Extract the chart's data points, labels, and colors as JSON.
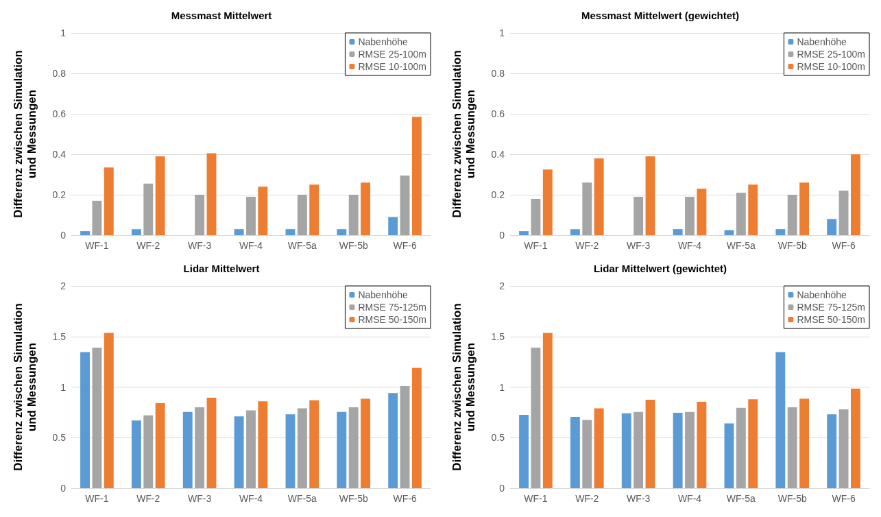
{
  "chart_data": [
    {
      "type": "bar",
      "title": "Messmast Mittelwert",
      "ylabel": "Differenz zwischen Simulation\nund Messungen",
      "categories": [
        "WF-1",
        "WF-2",
        "WF-3",
        "WF-4",
        "WF-5a",
        "WF-5b",
        "WF-6"
      ],
      "series": [
        {
          "name": "Nabenhöhe",
          "color": "#5b9bd5",
          "values": [
            0.02,
            0.03,
            null,
            0.03,
            0.03,
            0.03,
            0.09
          ]
        },
        {
          "name": "RMSE 25-100m",
          "color": "#a5a5a5",
          "values": [
            0.17,
            0.255,
            0.2,
            0.19,
            0.2,
            0.2,
            0.295
          ]
        },
        {
          "name": "RMSE 10-100m",
          "color": "#ed7d31",
          "values": [
            0.335,
            0.39,
            0.405,
            0.24,
            0.25,
            0.26,
            0.585
          ]
        }
      ],
      "ylim": [
        0,
        1
      ],
      "yticks": [
        0,
        0.2,
        0.4,
        0.6,
        0.8,
        1
      ],
      "grid": "y",
      "legend": "top right"
    },
    {
      "type": "bar",
      "title": "Messmast Mittelwert (gewichtet)",
      "ylabel": "Differenz zwischen Simulation\nund Messungen",
      "categories": [
        "WF-1",
        "WF-2",
        "WF-3",
        "WF-4",
        "WF-5a",
        "WF-5b",
        "WF-6"
      ],
      "series": [
        {
          "name": "Nabenhöhe",
          "color": "#5b9bd5",
          "values": [
            0.02,
            0.03,
            null,
            0.03,
            0.025,
            0.03,
            0.08
          ]
        },
        {
          "name": "RMSE 25-100m",
          "color": "#a5a5a5",
          "values": [
            0.18,
            0.26,
            0.19,
            0.19,
            0.21,
            0.2,
            0.22
          ]
        },
        {
          "name": "RMSE 10-100m",
          "color": "#ed7d31",
          "values": [
            0.325,
            0.38,
            0.39,
            0.23,
            0.25,
            0.26,
            0.4
          ]
        }
      ],
      "ylim": [
        0,
        1
      ],
      "yticks": [
        0,
        0.2,
        0.4,
        0.6,
        0.8,
        1
      ],
      "grid": "y",
      "legend": "top right"
    },
    {
      "type": "bar",
      "title": "Lidar Mittelwert",
      "ylabel": "Differenz zwischen Simulation\nund Messungen",
      "categories": [
        "WF-1",
        "WF-2",
        "WF-3",
        "WF-4",
        "WF-5a",
        "WF-5b",
        "WF-6"
      ],
      "series": [
        {
          "name": "Nabenhöhe",
          "color": "#5b9bd5",
          "values": [
            1.345,
            0.67,
            0.755,
            0.71,
            0.73,
            0.755,
            0.94
          ]
        },
        {
          "name": "RMSE 75-125m",
          "color": "#a5a5a5",
          "values": [
            1.39,
            0.72,
            0.8,
            0.77,
            0.79,
            0.8,
            1.01
          ]
        },
        {
          "name": "RMSE 50-150m",
          "color": "#ed7d31",
          "values": [
            1.535,
            0.84,
            0.895,
            0.86,
            0.87,
            0.885,
            1.19
          ]
        }
      ],
      "ylim": [
        0,
        2
      ],
      "yticks": [
        0,
        0.5,
        1,
        1.5,
        2
      ],
      "grid": "y",
      "legend": "top right"
    },
    {
      "type": "bar",
      "title": "Lidar Mittelwert (gewichtet)",
      "ylabel": "Differenz zwischen Simulation\nund Messungen",
      "categories": [
        "WF-1",
        "WF-2",
        "WF-3",
        "WF-4",
        "WF-5a",
        "WF-5b",
        "WF-6"
      ],
      "series": [
        {
          "name": "Nabenhöhe",
          "color": "#5b9bd5",
          "values": [
            0.725,
            0.705,
            0.74,
            0.745,
            0.64,
            1.345,
            0.73
          ]
        },
        {
          "name": "RMSE 75-125m",
          "color": "#a5a5a5",
          "values": [
            1.39,
            0.675,
            0.755,
            0.755,
            0.795,
            0.8,
            0.78
          ]
        },
        {
          "name": "RMSE 50-150m",
          "color": "#ed7d31",
          "values": [
            1.535,
            0.79,
            0.875,
            0.855,
            0.88,
            0.885,
            0.985
          ]
        }
      ],
      "ylim": [
        0,
        2
      ],
      "yticks": [
        0,
        0.5,
        1,
        1.5,
        2
      ],
      "grid": "y",
      "legend": "top right"
    }
  ]
}
